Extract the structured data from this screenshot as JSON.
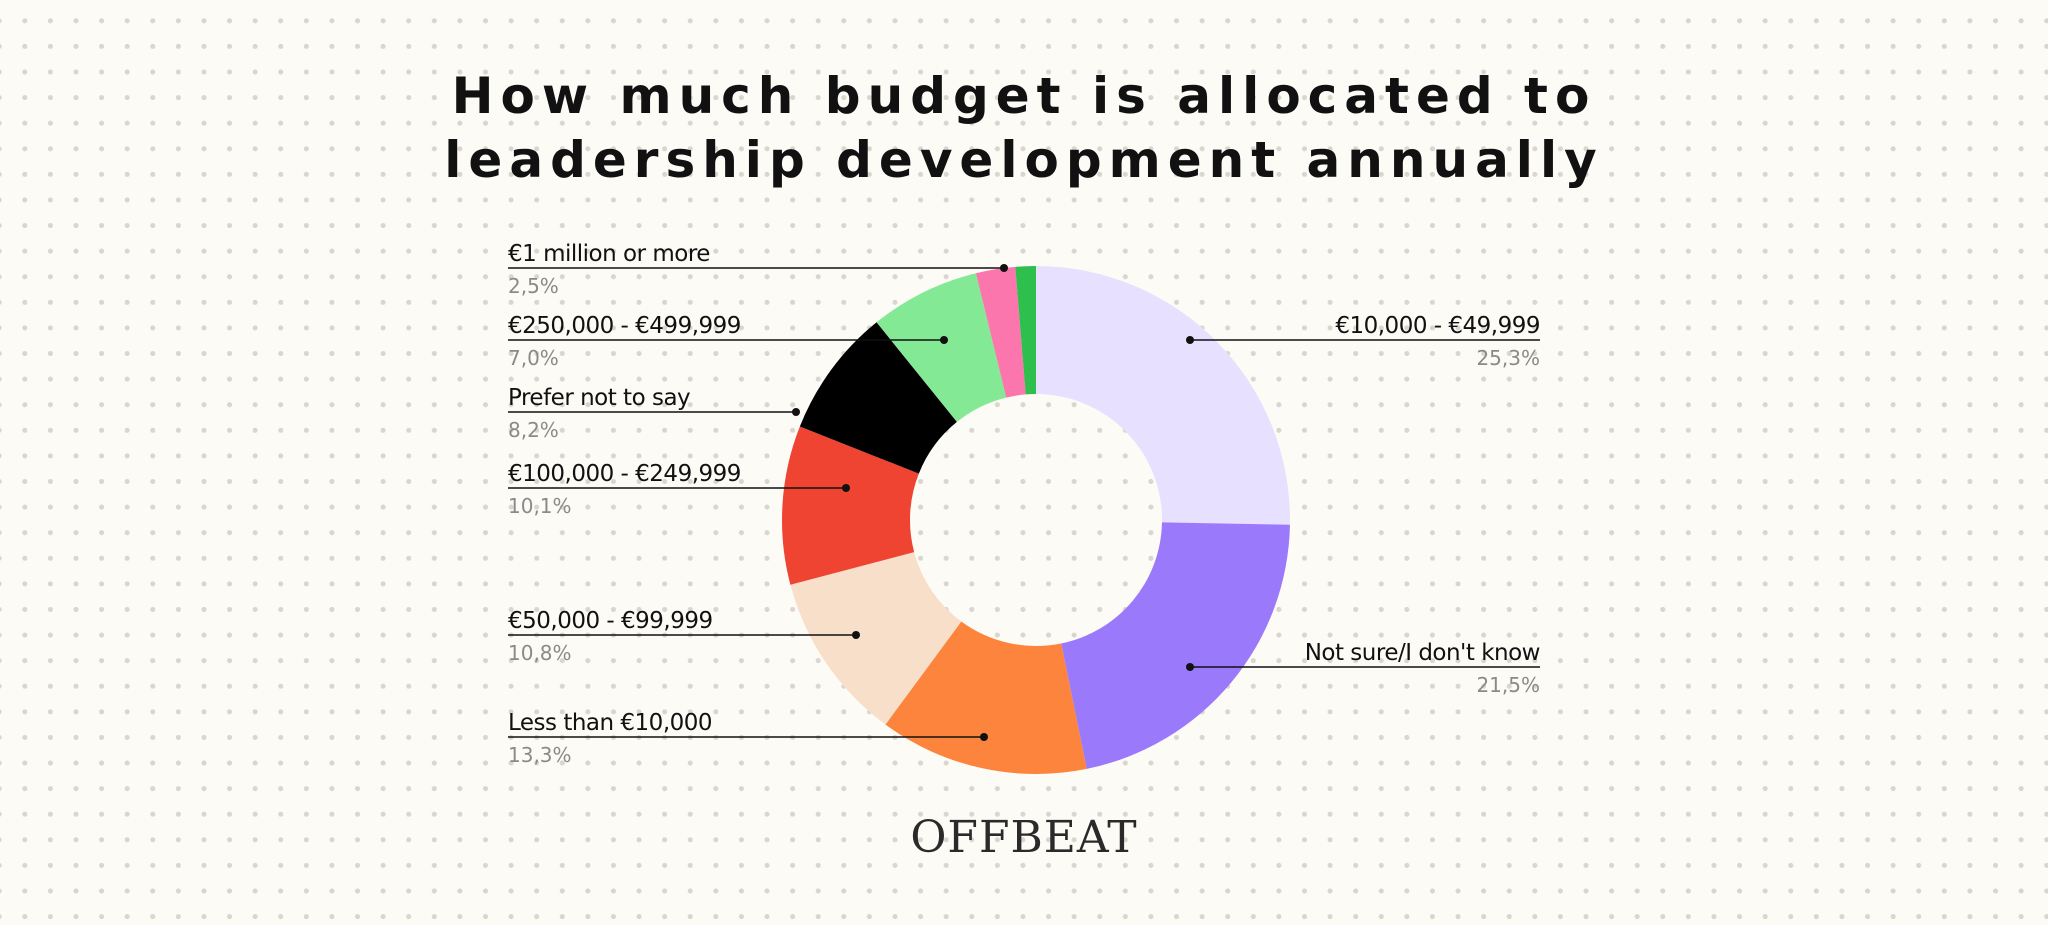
{
  "title": {
    "line1": "How much budget is allocated to",
    "line2": "leadership development annually"
  },
  "brand": "OFFBEAT",
  "chart_data": {
    "type": "pie",
    "variant": "donut",
    "title": "How much budget is allocated to leadership development annually",
    "slices": [
      {
        "label": "€10,000 - €49,999",
        "value": 25.3,
        "display": "25,3%",
        "color": "#e8e0ff",
        "side": "right"
      },
      {
        "label": "Not sure/I don't know",
        "value": 21.5,
        "display": "21,5%",
        "color": "#9b79fb",
        "side": "right"
      },
      {
        "label": "Less than €10,000",
        "value": 13.3,
        "display": "13,3%",
        "color": "#fd843d",
        "side": "left"
      },
      {
        "label": "€50,000 - €99,999",
        "value": 10.8,
        "display": "10,8%",
        "color": "#f8dfca",
        "side": "left"
      },
      {
        "label": "€100,000 - €249,999",
        "value": 10.1,
        "display": "10,1%",
        "color": "#ef4431",
        "side": "left"
      },
      {
        "label": "Prefer not to say",
        "value": 8.2,
        "display": "8,2%",
        "color": "#000000",
        "side": "left"
      },
      {
        "label": "€250,000 - €499,999",
        "value": 7.0,
        "display": "7,0%",
        "color": "#84e995",
        "side": "left"
      },
      {
        "label": "€1 million or more",
        "value": 2.5,
        "display": "2,5%",
        "color": "#fb76ad",
        "side": "left"
      },
      {
        "label": "",
        "value": 1.3,
        "display": "",
        "color": "#2fbf4c",
        "side": "none"
      }
    ]
  }
}
